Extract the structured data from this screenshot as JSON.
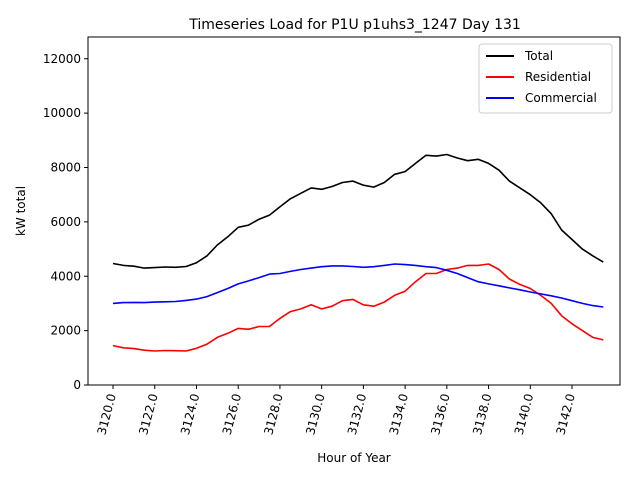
{
  "chart_data": {
    "type": "line",
    "title": "Timeseries Load for P1U p1uhs3_1247  Day 131",
    "xlabel": "Hour of Year",
    "ylabel": "kW total",
    "xlim": [
      3118.8,
      3144.3
    ],
    "ylim": [
      0,
      12800
    ],
    "x_ticks": [
      3120,
      3122,
      3124,
      3126,
      3128,
      3130,
      3132,
      3134,
      3136,
      3138,
      3140,
      3142
    ],
    "x_tick_labels": [
      "3120.0",
      "3122.0",
      "3124.0",
      "3126.0",
      "3128.0",
      "3130.0",
      "3132.0",
      "3134.0",
      "3136.0",
      "3138.0",
      "3140.0",
      "3142.0"
    ],
    "y_ticks": [
      0,
      2000,
      4000,
      6000,
      8000,
      10000,
      12000
    ],
    "y_tick_labels": [
      "0",
      "2000",
      "4000",
      "6000",
      "8000",
      "10000",
      "12000"
    ],
    "legend_position": "top-right",
    "series": [
      {
        "name": "Total",
        "color": "#000000",
        "points": [
          [
            3120.0,
            4470
          ],
          [
            3120.5,
            4400
          ],
          [
            3121.0,
            4370
          ],
          [
            3121.5,
            4300
          ],
          [
            3122.0,
            4320
          ],
          [
            3122.5,
            4340
          ],
          [
            3123.0,
            4330
          ],
          [
            3123.5,
            4360
          ],
          [
            3124.0,
            4500
          ],
          [
            3124.5,
            4750
          ],
          [
            3125.0,
            5150
          ],
          [
            3125.5,
            5450
          ],
          [
            3126.0,
            5800
          ],
          [
            3126.5,
            5880
          ],
          [
            3127.0,
            6100
          ],
          [
            3127.5,
            6250
          ],
          [
            3128.0,
            6550
          ],
          [
            3128.5,
            6850
          ],
          [
            3129.0,
            7050
          ],
          [
            3129.5,
            7250
          ],
          [
            3130.0,
            7200
          ],
          [
            3130.5,
            7300
          ],
          [
            3131.0,
            7450
          ],
          [
            3131.5,
            7500
          ],
          [
            3132.0,
            7350
          ],
          [
            3132.5,
            7280
          ],
          [
            3133.0,
            7450
          ],
          [
            3133.5,
            7750
          ],
          [
            3134.0,
            7850
          ],
          [
            3134.5,
            8150
          ],
          [
            3135.0,
            8450
          ],
          [
            3135.5,
            8420
          ],
          [
            3136.0,
            8480
          ],
          [
            3136.5,
            8350
          ],
          [
            3137.0,
            8250
          ],
          [
            3137.5,
            8300
          ],
          [
            3138.0,
            8150
          ],
          [
            3138.5,
            7900
          ],
          [
            3139.0,
            7500
          ],
          [
            3139.5,
            7250
          ],
          [
            3140.0,
            7000
          ],
          [
            3140.5,
            6700
          ],
          [
            3141.0,
            6300
          ],
          [
            3141.5,
            5700
          ],
          [
            3142.0,
            5350
          ],
          [
            3142.5,
            5000
          ],
          [
            3143.0,
            4750
          ],
          [
            3143.5,
            4520
          ]
        ]
      },
      {
        "name": "Residential",
        "color": "#ff0000",
        "points": [
          [
            3120.0,
            1450
          ],
          [
            3120.5,
            1370
          ],
          [
            3121.0,
            1340
          ],
          [
            3121.5,
            1280
          ],
          [
            3122.0,
            1250
          ],
          [
            3122.5,
            1270
          ],
          [
            3123.0,
            1260
          ],
          [
            3123.5,
            1250
          ],
          [
            3124.0,
            1350
          ],
          [
            3124.5,
            1500
          ],
          [
            3125.0,
            1750
          ],
          [
            3125.5,
            1900
          ],
          [
            3126.0,
            2080
          ],
          [
            3126.5,
            2050
          ],
          [
            3127.0,
            2150
          ],
          [
            3127.5,
            2150
          ],
          [
            3128.0,
            2450
          ],
          [
            3128.5,
            2700
          ],
          [
            3129.0,
            2800
          ],
          [
            3129.5,
            2950
          ],
          [
            3130.0,
            2800
          ],
          [
            3130.5,
            2900
          ],
          [
            3131.0,
            3100
          ],
          [
            3131.5,
            3150
          ],
          [
            3132.0,
            2950
          ],
          [
            3132.5,
            2900
          ],
          [
            3133.0,
            3050
          ],
          [
            3133.5,
            3300
          ],
          [
            3134.0,
            3450
          ],
          [
            3134.5,
            3800
          ],
          [
            3135.0,
            4100
          ],
          [
            3135.5,
            4100
          ],
          [
            3136.0,
            4250
          ],
          [
            3136.5,
            4300
          ],
          [
            3137.0,
            4400
          ],
          [
            3137.5,
            4400
          ],
          [
            3138.0,
            4450
          ],
          [
            3138.5,
            4250
          ],
          [
            3139.0,
            3900
          ],
          [
            3139.5,
            3700
          ],
          [
            3140.0,
            3550
          ],
          [
            3140.5,
            3300
          ],
          [
            3141.0,
            3000
          ],
          [
            3141.5,
            2550
          ],
          [
            3142.0,
            2250
          ],
          [
            3142.5,
            2000
          ],
          [
            3143.0,
            1750
          ],
          [
            3143.5,
            1660
          ]
        ]
      },
      {
        "name": "Commercial",
        "color": "#0000ff",
        "points": [
          [
            3120.0,
            3000
          ],
          [
            3120.5,
            3030
          ],
          [
            3121.0,
            3040
          ],
          [
            3121.5,
            3030
          ],
          [
            3122.0,
            3050
          ],
          [
            3122.5,
            3060
          ],
          [
            3123.0,
            3070
          ],
          [
            3123.5,
            3110
          ],
          [
            3124.0,
            3160
          ],
          [
            3124.5,
            3250
          ],
          [
            3125.0,
            3400
          ],
          [
            3125.5,
            3550
          ],
          [
            3126.0,
            3720
          ],
          [
            3126.5,
            3830
          ],
          [
            3127.0,
            3950
          ],
          [
            3127.5,
            4080
          ],
          [
            3128.0,
            4100
          ],
          [
            3128.5,
            4180
          ],
          [
            3129.0,
            4250
          ],
          [
            3129.5,
            4300
          ],
          [
            3130.0,
            4350
          ],
          [
            3130.5,
            4380
          ],
          [
            3131.0,
            4380
          ],
          [
            3131.5,
            4360
          ],
          [
            3132.0,
            4330
          ],
          [
            3132.5,
            4350
          ],
          [
            3133.0,
            4400
          ],
          [
            3133.5,
            4450
          ],
          [
            3134.0,
            4430
          ],
          [
            3134.5,
            4400
          ],
          [
            3135.0,
            4350
          ],
          [
            3135.5,
            4320
          ],
          [
            3136.0,
            4220
          ],
          [
            3136.5,
            4100
          ],
          [
            3137.0,
            3950
          ],
          [
            3137.5,
            3800
          ],
          [
            3138.0,
            3720
          ],
          [
            3138.5,
            3650
          ],
          [
            3139.0,
            3570
          ],
          [
            3139.5,
            3500
          ],
          [
            3140.0,
            3420
          ],
          [
            3140.5,
            3350
          ],
          [
            3141.0,
            3280
          ],
          [
            3141.5,
            3200
          ],
          [
            3142.0,
            3100
          ],
          [
            3142.5,
            3000
          ],
          [
            3143.0,
            2920
          ],
          [
            3143.5,
            2870
          ]
        ]
      }
    ]
  }
}
